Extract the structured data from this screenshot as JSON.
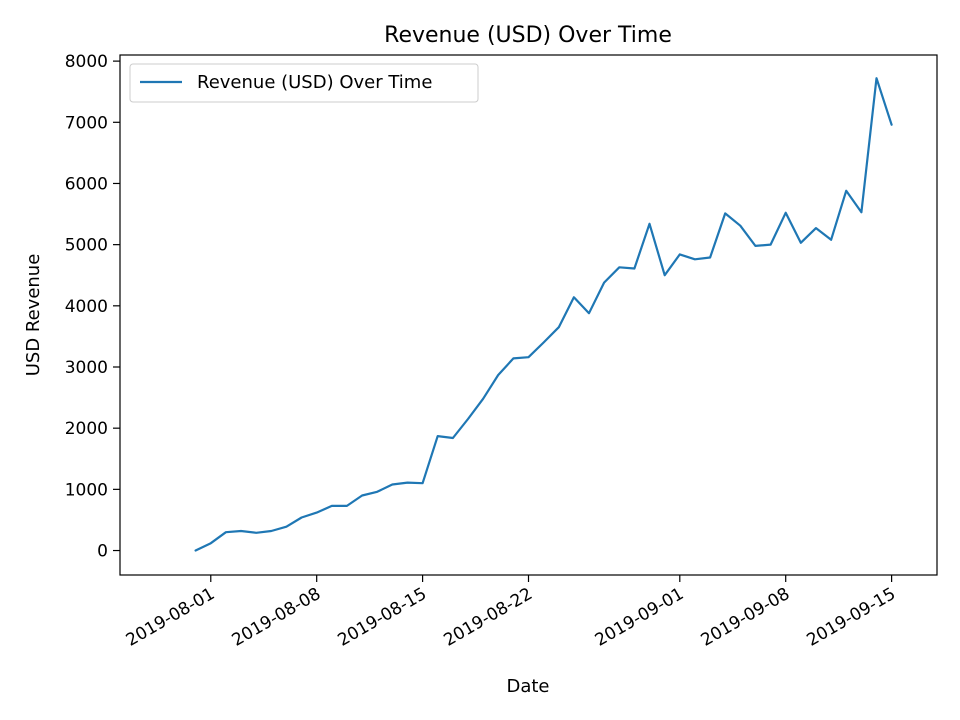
{
  "chart_data": {
    "type": "line",
    "title": "Revenue (USD) Over Time",
    "xlabel": "Date",
    "ylabel": "USD Revenue",
    "legend_position": "top-left",
    "grid": false,
    "ylim": [
      -400,
      8100
    ],
    "xlim": [
      "2019-07-26",
      "2019-09-18"
    ],
    "y_ticks": [
      0,
      1000,
      2000,
      3000,
      4000,
      5000,
      6000,
      7000,
      8000
    ],
    "x_ticks": [
      "2019-08-01",
      "2019-08-08",
      "2019-08-15",
      "2019-08-22",
      "2019-09-01",
      "2019-09-08",
      "2019-09-15"
    ],
    "series": [
      {
        "name": "Revenue (USD) Over Time",
        "color": "#1f77b4",
        "x": [
          "2019-07-31",
          "2019-08-01",
          "2019-08-02",
          "2019-08-03",
          "2019-08-04",
          "2019-08-05",
          "2019-08-06",
          "2019-08-07",
          "2019-08-08",
          "2019-08-09",
          "2019-08-10",
          "2019-08-11",
          "2019-08-12",
          "2019-08-13",
          "2019-08-14",
          "2019-08-15",
          "2019-08-16",
          "2019-08-17",
          "2019-08-18",
          "2019-08-19",
          "2019-08-20",
          "2019-08-21",
          "2019-08-22",
          "2019-08-23",
          "2019-08-24",
          "2019-08-25",
          "2019-08-26",
          "2019-08-27",
          "2019-08-28",
          "2019-08-29",
          "2019-08-30",
          "2019-08-31",
          "2019-09-01",
          "2019-09-02",
          "2019-09-03",
          "2019-09-04",
          "2019-09-05",
          "2019-09-06",
          "2019-09-07",
          "2019-09-08",
          "2019-09-09",
          "2019-09-10",
          "2019-09-11",
          "2019-09-12",
          "2019-09-13",
          "2019-09-14",
          "2019-09-15"
        ],
        "values": [
          0,
          120,
          300,
          320,
          290,
          320,
          390,
          540,
          620,
          730,
          730,
          900,
          960,
          1080,
          1110,
          1100,
          1870,
          1840,
          2150,
          2480,
          2870,
          3140,
          3160,
          3400,
          3650,
          4140,
          3880,
          4380,
          4630,
          4610,
          5340,
          4500,
          4840,
          4760,
          4790,
          5510,
          5310,
          4980,
          5000,
          5520,
          5030,
          5270,
          5080,
          5880,
          5530,
          7720,
          6960
        ]
      }
    ]
  }
}
